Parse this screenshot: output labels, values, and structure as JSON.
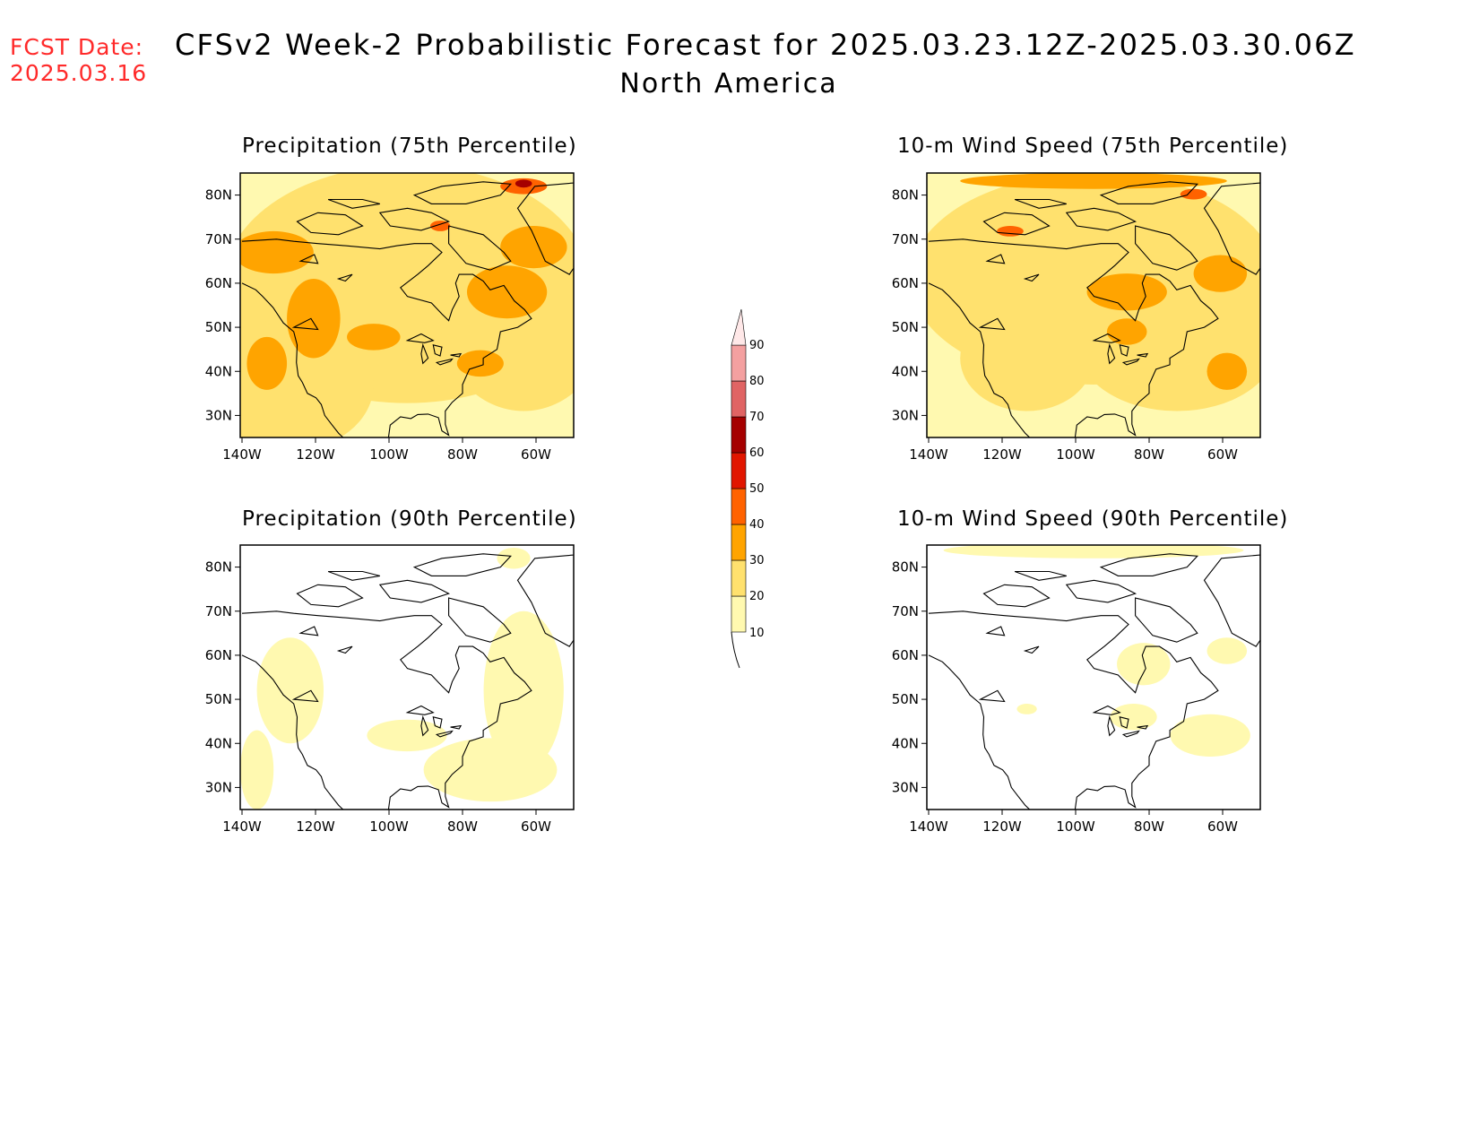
{
  "header": {
    "fcst_label": "FCST Date:",
    "fcst_date": "2025.03.16",
    "title": "CFSv2 Week-2 Probabilistic Forecast for 2025.03.23.12Z-2025.03.30.06Z",
    "subtitle": "North America"
  },
  "colors": {
    "c10": "#fff9b0",
    "c20": "#ffe16e",
    "c30": "#ffa400",
    "c40": "#ff6200",
    "c50": "#e11600",
    "c60": "#a50000",
    "c70": "#e06464",
    "c80": "#f4a0a0",
    "c90": "#ffe8e8"
  },
  "colorbar": {
    "levels": [
      "10",
      "20",
      "30",
      "40",
      "50",
      "60",
      "70",
      "80",
      "90"
    ]
  },
  "axes": {
    "lon_ticks": [
      "140W",
      "120W",
      "100W",
      "80W",
      "60W"
    ],
    "lat_ticks": [
      "80N",
      "70N",
      "60N",
      "50N",
      "40N",
      "30N"
    ]
  },
  "panels": [
    {
      "id": "precip-75",
      "title": "Precipitation (75th Percentile)"
    },
    {
      "id": "wind-75",
      "title": "10-m Wind Speed (75th Percentile)"
    },
    {
      "id": "precip-90",
      "title": "Precipitation (90th Percentile)"
    },
    {
      "id": "wind-90",
      "title": "10-m Wind Speed (90th Percentile)"
    }
  ]
}
